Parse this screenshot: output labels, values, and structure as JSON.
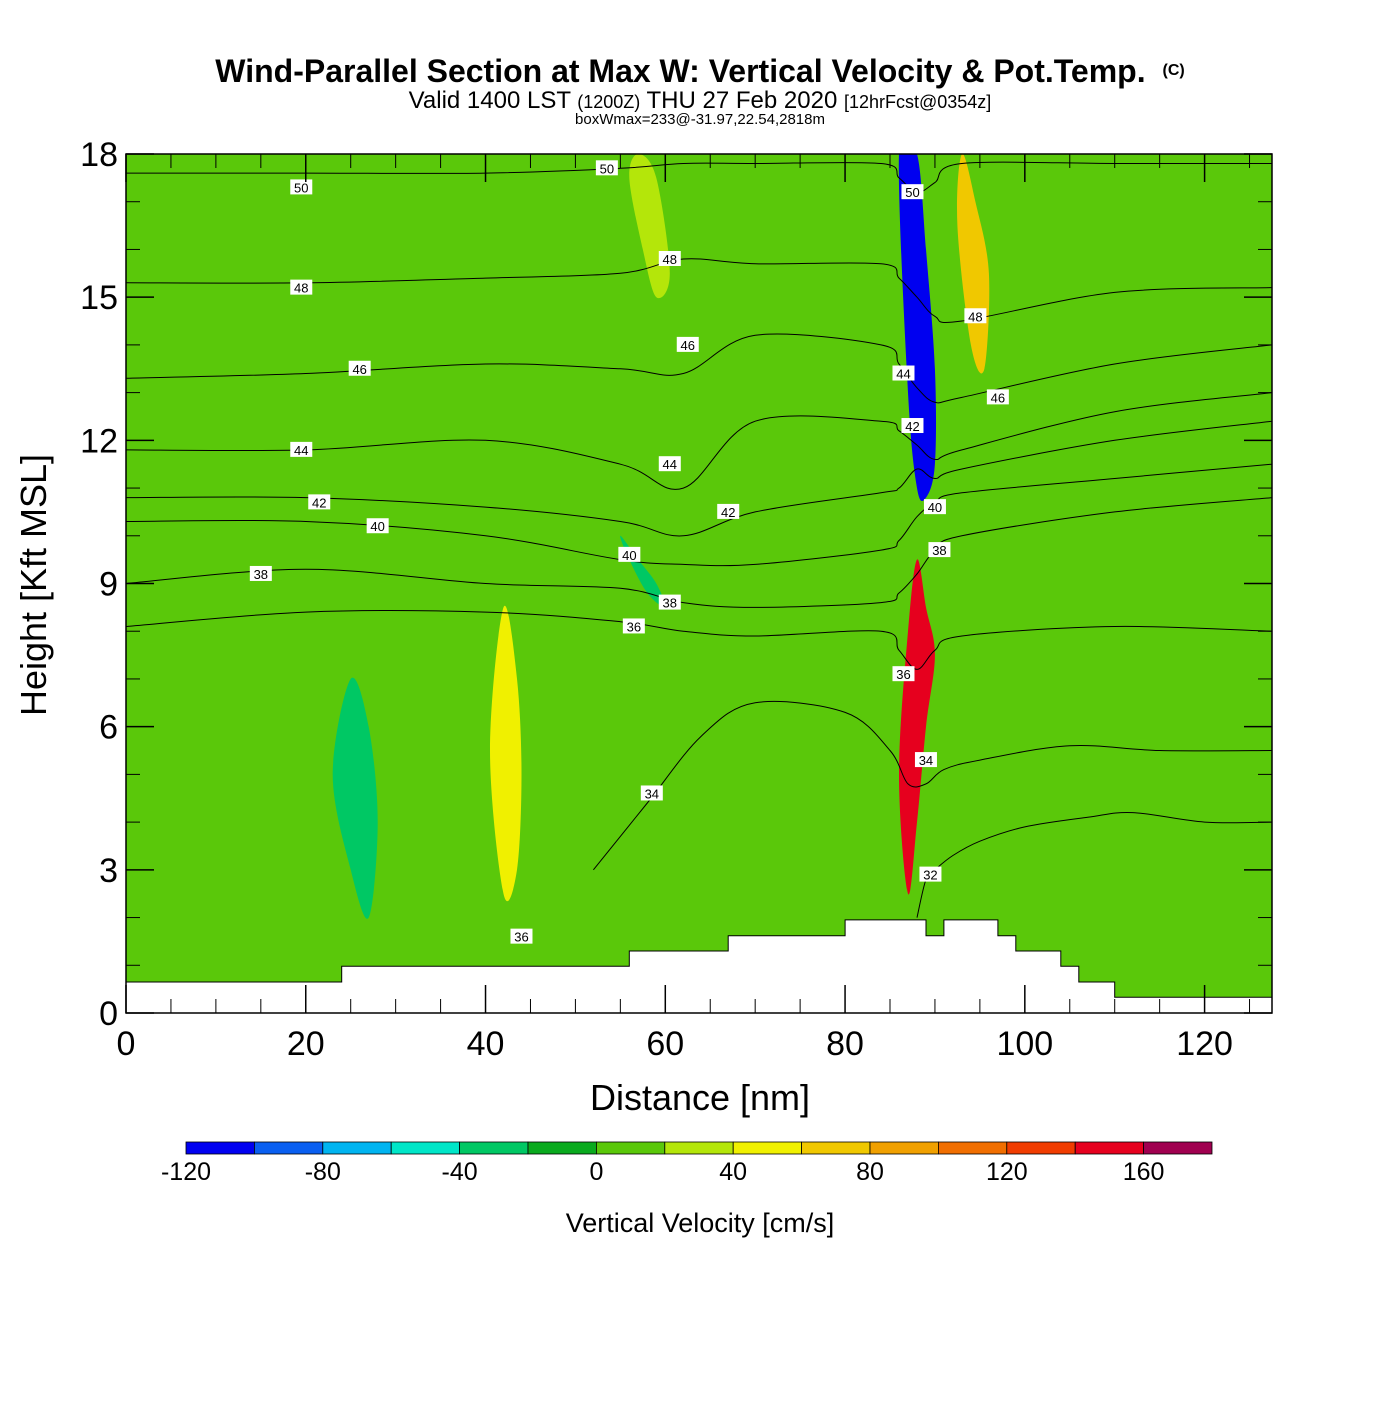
{
  "chart_data": {
    "type": "contour-section",
    "title": "Wind-Parallel Section at Max W: Vertical Velocity & Pot.Temp.",
    "title_mark": "(C)",
    "subtitle": {
      "valid_prefix": "Valid 1400 LST",
      "utc": "(1200Z)",
      "date": "THU 27 Feb 2020",
      "forecast": "[12hrFcst@0354z]"
    },
    "box_info": "boxWmax=233@-31.97,22.54,2818m",
    "xlabel": "Distance [nm]",
    "ylabel": "Height [Kft MSL]",
    "xlim": [
      0,
      127.5
    ],
    "ylim": [
      0,
      18
    ],
    "x_ticks": [
      0,
      20,
      40,
      60,
      80,
      100,
      120
    ],
    "x_tick_labels": [
      "0",
      "20",
      "40",
      "60",
      "80",
      "100",
      "120"
    ],
    "y_ticks": [
      0,
      3,
      6,
      9,
      12,
      15,
      18
    ],
    "y_tick_labels": [
      "0",
      "3",
      "6",
      "9",
      "12",
      "15",
      "18"
    ],
    "colorbar": {
      "label": "Vertical Velocity [cm/s]",
      "min": -120,
      "step": 20,
      "colors": [
        "#0000f0",
        "#0a5ff0",
        "#00b4f0",
        "#00e6c8",
        "#00c864",
        "#0aaa1e",
        "#5ac80a",
        "#b4e60a",
        "#f0f000",
        "#f0c800",
        "#f0a000",
        "#f06e00",
        "#f03c00",
        "#e6001e",
        "#a00050"
      ],
      "tick_values": [
        -120,
        -80,
        -40,
        0,
        40,
        80,
        120,
        160
      ],
      "tick_labels": [
        "-120",
        "-80",
        "-40",
        "0",
        "40",
        "80",
        "120",
        "160"
      ]
    },
    "vertical_velocity_features": [
      {
        "x": [
          88,
          89,
          90,
          90,
          89,
          88,
          87,
          86
        ],
        "y": [
          18,
          16,
          13.5,
          11.5,
          10.8,
          11,
          13,
          18
        ],
        "value": -120
      },
      {
        "x": [
          87,
          88,
          89,
          90,
          89,
          88,
          87,
          86
        ],
        "y": [
          2.5,
          4,
          6,
          7.5,
          8.5,
          9.5,
          8,
          5
        ],
        "value": 140
      },
      {
        "x": [
          93,
          94.5,
          96,
          95.5,
          94,
          92.5
        ],
        "y": [
          18,
          17,
          15.5,
          13.5,
          14,
          16.5
        ],
        "value": 70
      },
      {
        "x": [
          25,
          27,
          28,
          27,
          25,
          23
        ],
        "y": [
          7,
          6,
          4,
          2,
          3,
          5
        ],
        "value": -30
      },
      {
        "x": [
          42,
          43.5,
          44,
          43.5,
          42,
          40.5
        ],
        "y": [
          8.5,
          7,
          5,
          3,
          2.5,
          5.5
        ],
        "value": 40
      },
      {
        "x": [
          57,
          59,
          60.5,
          59,
          57.5,
          56
        ],
        "y": [
          18,
          17.5,
          15.5,
          15,
          16,
          17.5
        ],
        "value": 30
      },
      {
        "x": [
          55,
          57,
          59,
          60,
          58,
          56
        ],
        "y": [
          10,
          9.5,
          9,
          8.5,
          8.8,
          9.5
        ],
        "value": -30
      }
    ],
    "terrain": {
      "x": [
        0,
        24,
        24,
        56,
        56,
        67,
        67,
        80,
        80,
        89,
        89,
        91,
        91,
        97,
        97,
        99,
        99,
        104,
        104,
        106,
        106,
        110,
        110,
        127.5
      ],
      "y": [
        0.65,
        0.65,
        0.98,
        0.98,
        1.3,
        1.3,
        1.62,
        1.62,
        1.95,
        1.95,
        1.62,
        1.62,
        1.95,
        1.95,
        1.62,
        1.62,
        1.3,
        1.3,
        0.98,
        0.98,
        0.65,
        0.65,
        0.33,
        0.33
      ]
    },
    "theta_contours": [
      {
        "value": 50,
        "x": [
          0,
          20,
          40,
          55,
          62,
          70,
          84,
          86,
          88,
          90,
          93,
          110,
          127.5
        ],
        "y": [
          17.6,
          17.6,
          17.6,
          17.7,
          17.8,
          17.8,
          17.8,
          17.5,
          17.2,
          17.4,
          17.8,
          17.8,
          17.8
        ]
      },
      {
        "value": 48,
        "x": [
          0,
          20,
          40,
          55,
          62,
          70,
          84,
          86,
          88,
          90,
          93,
          110,
          127.5
        ],
        "y": [
          15.3,
          15.3,
          15.4,
          15.5,
          15.8,
          15.7,
          15.7,
          15.4,
          15.0,
          14.6,
          14.5,
          15.1,
          15.2
        ]
      },
      {
        "value": 46,
        "x": [
          0,
          20,
          40,
          55,
          62,
          70,
          84,
          86,
          88,
          90,
          93,
          110,
          127.5
        ],
        "y": [
          13.3,
          13.4,
          13.6,
          13.5,
          13.4,
          14.2,
          14.0,
          13.6,
          13.1,
          12.8,
          12.9,
          13.6,
          14.0
        ]
      },
      {
        "value": 44,
        "x": [
          0,
          20,
          40,
          55,
          62,
          70,
          84,
          86,
          88,
          90,
          93,
          110,
          127.5
        ],
        "y": [
          11.8,
          11.8,
          12.0,
          11.5,
          11.0,
          12.4,
          12.4,
          12.2,
          11.9,
          11.6,
          11.8,
          12.6,
          13.0
        ]
      },
      {
        "value": 42,
        "x": [
          0,
          20,
          40,
          55,
          62,
          70,
          84,
          86,
          88,
          90,
          93,
          110,
          127.5
        ],
        "y": [
          10.8,
          10.8,
          10.6,
          10.3,
          10.0,
          10.5,
          10.9,
          11.0,
          11.4,
          11.2,
          11.4,
          12.0,
          12.4
        ]
      },
      {
        "value": 40,
        "x": [
          0,
          20,
          40,
          55,
          62,
          70,
          84,
          86,
          88,
          90,
          93,
          110,
          127.5
        ],
        "y": [
          10.3,
          10.3,
          10.0,
          9.5,
          9.4,
          9.4,
          9.7,
          9.9,
          10.4,
          10.7,
          10.9,
          11.2,
          11.5
        ]
      },
      {
        "value": 38,
        "x": [
          0,
          20,
          40,
          55,
          62,
          70,
          84,
          86,
          88,
          90,
          93,
          110,
          127.5
        ],
        "y": [
          9.0,
          9.3,
          9.0,
          8.9,
          8.6,
          8.5,
          8.6,
          8.8,
          9.2,
          9.7,
          10.0,
          10.5,
          10.8
        ]
      },
      {
        "value": 36,
        "x": [
          0,
          20,
          40,
          55,
          62,
          70,
          84,
          86,
          88,
          90,
          93,
          110,
          127.5
        ],
        "y": [
          8.1,
          8.4,
          8.4,
          8.2,
          8.0,
          7.9,
          8.0,
          7.6,
          7.2,
          7.6,
          7.9,
          8.1,
          8.0
        ]
      },
      {
        "value": 34,
        "x": [
          52,
          58,
          64,
          70,
          80,
          85,
          87,
          89,
          91,
          95,
          105,
          115,
          127.5
        ],
        "y": [
          3.0,
          4.4,
          5.8,
          6.5,
          6.3,
          5.5,
          4.8,
          4.8,
          5.1,
          5.3,
          5.6,
          5.5,
          5.5
        ]
      },
      {
        "value": 32,
        "x": [
          88,
          89,
          90,
          92,
          95,
          100,
          107,
          112,
          120,
          127.5
        ],
        "y": [
          2.0,
          2.8,
          3.0,
          3.3,
          3.6,
          3.9,
          4.1,
          4.2,
          4.0,
          4.0
        ]
      }
    ],
    "contour_labels": [
      {
        "text": "50",
        "x": 19.5,
        "y": 17.3
      },
      {
        "text": "50",
        "x": 53.5,
        "y": 17.7
      },
      {
        "text": "50",
        "x": 87.5,
        "y": 17.2
      },
      {
        "text": "48",
        "x": 19.5,
        "y": 15.2
      },
      {
        "text": "48",
        "x": 60.5,
        "y": 15.8
      },
      {
        "text": "48",
        "x": 94.5,
        "y": 14.6
      },
      {
        "text": "46",
        "x": 26,
        "y": 13.5
      },
      {
        "text": "46",
        "x": 62.5,
        "y": 14.0
      },
      {
        "text": "46",
        "x": 97,
        "y": 12.9
      },
      {
        "text": "44",
        "x": 19.5,
        "y": 11.8
      },
      {
        "text": "44",
        "x": 60.5,
        "y": 11.5
      },
      {
        "text": "44",
        "x": 86.5,
        "y": 13.4
      },
      {
        "text": "42",
        "x": 21.5,
        "y": 10.7
      },
      {
        "text": "42",
        "x": 67,
        "y": 10.5
      },
      {
        "text": "42",
        "x": 87.5,
        "y": 12.3
      },
      {
        "text": "40",
        "x": 28,
        "y": 10.2
      },
      {
        "text": "40",
        "x": 56,
        "y": 9.6
      },
      {
        "text": "40",
        "x": 90,
        "y": 10.6
      },
      {
        "text": "38",
        "x": 15,
        "y": 9.2
      },
      {
        "text": "38",
        "x": 60.5,
        "y": 8.6
      },
      {
        "text": "38",
        "x": 90.5,
        "y": 9.7
      },
      {
        "text": "36",
        "x": 56.5,
        "y": 8.1
      },
      {
        "text": "36",
        "x": 86.5,
        "y": 7.1
      },
      {
        "text": "36",
        "x": 44,
        "y": 1.6
      },
      {
        "text": "34",
        "x": 58.5,
        "y": 4.6
      },
      {
        "text": "34",
        "x": 89,
        "y": 5.3
      },
      {
        "text": "32",
        "x": 89.5,
        "y": 2.9
      }
    ]
  }
}
